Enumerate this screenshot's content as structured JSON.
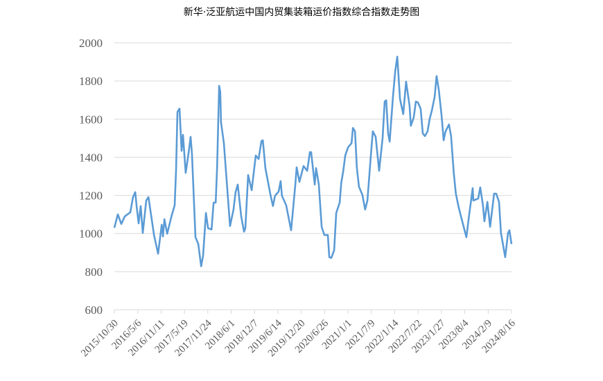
{
  "chart_data": {
    "type": "line",
    "title": "新华·泛亚航运中国内贸集装箱运价指数综合指数走势图",
    "xlabel": "",
    "ylabel": "",
    "ylim": [
      600,
      2000
    ],
    "yticks": [
      600,
      800,
      1000,
      1200,
      1400,
      1600,
      1800,
      2000
    ],
    "xlim": [
      "2015-10-30",
      "2024-08-16"
    ],
    "xtick_labels": [
      "2015/10/30",
      "2016/5/6",
      "2016/11/11",
      "2017/5/19",
      "2017/11/24",
      "2018/6/1",
      "2018/12/7",
      "2019/6/14",
      "2019/12/20",
      "2020/6/26",
      "2021/1/1",
      "2021/7/9",
      "2022/1/14",
      "2022/7/22",
      "2023/1/27",
      "2023/8/4",
      "2024/2/9",
      "2024/8/16"
    ],
    "grid": "horizontal",
    "legend": "none",
    "color": "#5B9BD5",
    "series": [
      {
        "x": [
          "2015-10-30",
          "2015-11-27",
          "2015-12-25",
          "2016-01-22",
          "2016-03-07",
          "2016-03-29",
          "2016-04-16",
          "2016-04-27",
          "2016-05-13",
          "2016-05-30",
          "2016-06-16",
          "2016-07-14",
          "2016-08-01",
          "2016-09-15",
          "2016-10-18",
          "2016-11-16",
          "2016-11-26",
          "2016-12-08",
          "2016-12-30",
          "2017-02-03",
          "2017-03-01",
          "2017-03-12",
          "2017-03-23",
          "2017-04-09",
          "2017-04-26",
          "2017-05-07",
          "2017-05-29",
          "2017-06-21",
          "2017-07-08",
          "2017-07-19",
          "2017-08-16",
          "2017-09-08",
          "2017-10-01",
          "2017-10-17",
          "2017-11-09",
          "2017-11-26",
          "2017-12-24",
          "2018-01-10",
          "2018-01-27",
          "2018-02-07",
          "2018-02-24",
          "2018-03-05",
          "2018-03-11",
          "2018-04-03",
          "2018-05-23",
          "2018-06-20",
          "2018-07-07",
          "2018-07-24",
          "2018-08-21",
          "2018-09-13",
          "2018-09-24",
          "2018-10-16",
          "2018-11-14",
          "2018-12-17",
          "2019-01-09",
          "2019-02-01",
          "2019-02-12",
          "2019-03-05",
          "2019-04-13",
          "2019-05-05",
          "2019-05-22",
          "2019-06-20",
          "2019-07-06",
          "2019-07-17",
          "2019-08-20",
          "2019-09-29",
          "2019-11-02",
          "2019-11-13",
          "2019-12-05",
          "2020-01-08",
          "2020-02-06",
          "2020-02-28",
          "2020-03-09",
          "2020-04-07",
          "2020-04-18",
          "2020-05-10",
          "2020-06-02",
          "2020-06-24",
          "2020-07-22",
          "2020-08-03",
          "2020-08-19",
          "2020-09-11",
          "2020-09-28",
          "2020-10-26",
          "2020-11-07",
          "2020-11-24",
          "2020-12-10",
          "2021-01-02",
          "2021-01-30",
          "2021-02-10",
          "2021-02-27",
          "2021-03-14",
          "2021-03-31",
          "2021-04-28",
          "2021-05-20",
          "2021-06-07",
          "2021-07-04",
          "2021-07-21",
          "2021-08-13",
          "2021-09-10",
          "2021-10-08",
          "2021-10-25",
          "2021-11-06",
          "2021-11-22",
          "2021-12-04",
          "2022-01-01",
          "2022-01-18",
          "2022-02-04",
          "2022-02-26",
          "2022-03-24",
          "2022-04-16",
          "2022-05-14",
          "2022-05-25",
          "2022-06-17",
          "2022-07-04",
          "2022-07-20",
          "2022-08-12",
          "2022-08-29",
          "2022-09-15",
          "2022-10-07",
          "2022-10-24",
          "2022-11-10",
          "2022-12-03",
          "2022-12-19",
          "2023-01-06",
          "2023-01-28",
          "2023-02-14",
          "2023-03-01",
          "2023-03-29",
          "2023-04-15",
          "2023-05-07",
          "2023-05-24",
          "2023-06-16",
          "2023-07-19",
          "2023-08-17",
          "2023-09-09",
          "2023-10-07",
          "2023-10-12",
          "2023-11-21",
          "2023-12-07",
          "2023-12-29",
          "2024-01-10",
          "2024-02-03",
          "2024-02-25",
          "2024-03-28",
          "2024-04-14",
          "2024-05-07",
          "2024-05-23",
          "2024-06-26",
          "2024-07-19",
          "2024-07-30",
          "2024-08-16"
        ],
        "values": [
          1030,
          1100,
          1050,
          1090,
          1111,
          1191,
          1217,
          1144,
          1053,
          1144,
          1003,
          1173,
          1191,
          992,
          894,
          1046,
          985,
          1075,
          999,
          1090,
          1148,
          1329,
          1637,
          1655,
          1434,
          1518,
          1318,
          1420,
          1507,
          1416,
          981,
          945,
          828,
          883,
          1108,
          1028,
          1021,
          1162,
          1162,
          1343,
          1775,
          1742,
          1583,
          1474,
          1039,
          1126,
          1217,
          1257,
          1090,
          1010,
          1028,
          1307,
          1227,
          1409,
          1391,
          1485,
          1489,
          1343,
          1209,
          1144,
          1198,
          1220,
          1275,
          1198,
          1148,
          1017,
          1257,
          1347,
          1271,
          1354,
          1329,
          1427,
          1427,
          1257,
          1343,
          1257,
          1035,
          992,
          992,
          876,
          872,
          912,
          1108,
          1162,
          1264,
          1329,
          1409,
          1452,
          1474,
          1554,
          1536,
          1343,
          1246,
          1202,
          1126,
          1173,
          1402,
          1536,
          1507,
          1329,
          1500,
          1692,
          1699,
          1525,
          1482,
          1728,
          1851,
          1928,
          1706,
          1626,
          1797,
          1670,
          1565,
          1608,
          1692,
          1688,
          1655,
          1525,
          1511,
          1536,
          1601,
          1644,
          1717,
          1826,
          1753,
          1619,
          1489,
          1536,
          1572,
          1511,
          1318,
          1209,
          1137,
          1053,
          981,
          1101,
          1238,
          1173,
          1184,
          1242,
          1148,
          1064,
          1166,
          1035,
          1209,
          1209,
          1166,
          1003,
          876,
          1003,
          1017,
          945
        ]
      }
    ]
  }
}
